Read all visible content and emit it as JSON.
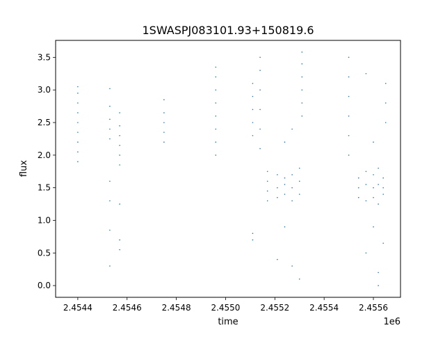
{
  "chart_data": {
    "type": "scatter",
    "title": "1SWASPJ083101.93+150819.6",
    "xlabel": "time",
    "ylabel": "flux",
    "x_offset_label": "1e6",
    "x_scale": 1000000,
    "xlim": [
      2.45431,
      2.45571
    ],
    "ylim": [
      -0.18,
      3.76
    ],
    "xticks": [
      2.4544,
      2.4546,
      2.4548,
      2.455,
      2.4552,
      2.4554,
      2.4556
    ],
    "xtick_labels": [
      "2.4544",
      "2.4546",
      "2.4548",
      "2.4550",
      "2.4552",
      "2.4554",
      "2.4556"
    ],
    "yticks": [
      0.0,
      0.5,
      1.0,
      1.5,
      2.0,
      2.5,
      3.0,
      3.5
    ],
    "ytick_labels": [
      "0.0",
      "0.5",
      "1.0",
      "1.5",
      "2.0",
      "2.5",
      "3.0",
      "3.5"
    ],
    "grid": false,
    "point_color": "#1f77b4",
    "series": [
      {
        "points": [
          [
            2.4544,
            1.9
          ],
          [
            2.4544,
            2.05
          ],
          [
            2.4544,
            2.2
          ],
          [
            2.4544,
            2.35
          ],
          [
            2.4544,
            2.5
          ],
          [
            2.4544,
            2.65
          ],
          [
            2.4544,
            2.8
          ],
          [
            2.4544,
            2.95
          ],
          [
            2.4544,
            3.05
          ],
          [
            2.45453,
            2.25
          ],
          [
            2.45453,
            2.4
          ],
          [
            2.45453,
            2.55
          ],
          [
            2.45453,
            2.75
          ],
          [
            2.45453,
            3.02
          ],
          [
            2.45453,
            1.6
          ],
          [
            2.45453,
            1.3
          ],
          [
            2.45453,
            0.85
          ],
          [
            2.45453,
            0.3
          ],
          [
            2.45457,
            1.85
          ],
          [
            2.45457,
            2.0
          ],
          [
            2.45457,
            2.15
          ],
          [
            2.45457,
            2.3
          ],
          [
            2.45457,
            2.45
          ],
          [
            2.45457,
            2.65
          ],
          [
            2.45457,
            1.25
          ],
          [
            2.45457,
            0.7
          ],
          [
            2.45457,
            0.55
          ],
          [
            2.45475,
            2.2
          ],
          [
            2.45475,
            2.35
          ],
          [
            2.45475,
            2.5
          ],
          [
            2.45475,
            2.65
          ],
          [
            2.45475,
            2.85
          ],
          [
            2.45496,
            2.0
          ],
          [
            2.45496,
            2.2
          ],
          [
            2.45496,
            2.4
          ],
          [
            2.45496,
            2.6
          ],
          [
            2.45496,
            2.8
          ],
          [
            2.45496,
            3.0
          ],
          [
            2.45496,
            3.2
          ],
          [
            2.45496,
            3.35
          ],
          [
            2.45511,
            2.3
          ],
          [
            2.45511,
            2.5
          ],
          [
            2.45511,
            2.7
          ],
          [
            2.45511,
            2.9
          ],
          [
            2.45511,
            3.1
          ],
          [
            2.45511,
            0.8
          ],
          [
            2.45511,
            0.7
          ],
          [
            2.45514,
            2.1
          ],
          [
            2.45514,
            2.4
          ],
          [
            2.45514,
            2.7
          ],
          [
            2.45514,
            3.0
          ],
          [
            2.45514,
            3.3
          ],
          [
            2.45514,
            3.5
          ],
          [
            2.45517,
            1.3
          ],
          [
            2.45517,
            1.45
          ],
          [
            2.45517,
            1.6
          ],
          [
            2.45517,
            1.75
          ],
          [
            2.45521,
            1.5
          ],
          [
            2.45521,
            1.35
          ],
          [
            2.45521,
            1.7
          ],
          [
            2.45521,
            0.4
          ],
          [
            2.45524,
            1.55
          ],
          [
            2.45524,
            1.4
          ],
          [
            2.45524,
            1.65
          ],
          [
            2.45524,
            2.2
          ],
          [
            2.45524,
            0.9
          ],
          [
            2.45527,
            1.5
          ],
          [
            2.45527,
            1.3
          ],
          [
            2.45527,
            1.7
          ],
          [
            2.45527,
            0.3
          ],
          [
            2.45527,
            2.4
          ],
          [
            2.4553,
            1.6
          ],
          [
            2.4553,
            1.4
          ],
          [
            2.4553,
            1.8
          ],
          [
            2.4553,
            0.1
          ],
          [
            2.45531,
            2.6
          ],
          [
            2.45531,
            2.8
          ],
          [
            2.45531,
            3.0
          ],
          [
            2.45531,
            3.2
          ],
          [
            2.45531,
            3.4
          ],
          [
            2.45531,
            3.58
          ],
          [
            2.4555,
            2.0
          ],
          [
            2.4555,
            2.3
          ],
          [
            2.4555,
            2.6
          ],
          [
            2.4555,
            2.9
          ],
          [
            2.4555,
            3.2
          ],
          [
            2.4555,
            3.5
          ],
          [
            2.45554,
            1.5
          ],
          [
            2.45554,
            1.35
          ],
          [
            2.45554,
            1.65
          ],
          [
            2.45557,
            1.55
          ],
          [
            2.45557,
            1.3
          ],
          [
            2.45557,
            1.75
          ],
          [
            2.45557,
            3.25
          ],
          [
            2.45557,
            0.5
          ],
          [
            2.4556,
            1.5
          ],
          [
            2.4556,
            1.35
          ],
          [
            2.4556,
            1.7
          ],
          [
            2.4556,
            2.2
          ],
          [
            2.4556,
            0.9
          ],
          [
            2.45562,
            1.55
          ],
          [
            2.45562,
            1.25
          ],
          [
            2.45562,
            1.8
          ],
          [
            2.45562,
            0.0
          ],
          [
            2.45562,
            0.2
          ],
          [
            2.45564,
            1.5
          ],
          [
            2.45564,
            1.4
          ],
          [
            2.45564,
            1.65
          ],
          [
            2.45564,
            0.65
          ],
          [
            2.45565,
            2.8
          ],
          [
            2.45565,
            3.1
          ],
          [
            2.45565,
            2.5
          ]
        ]
      }
    ]
  }
}
